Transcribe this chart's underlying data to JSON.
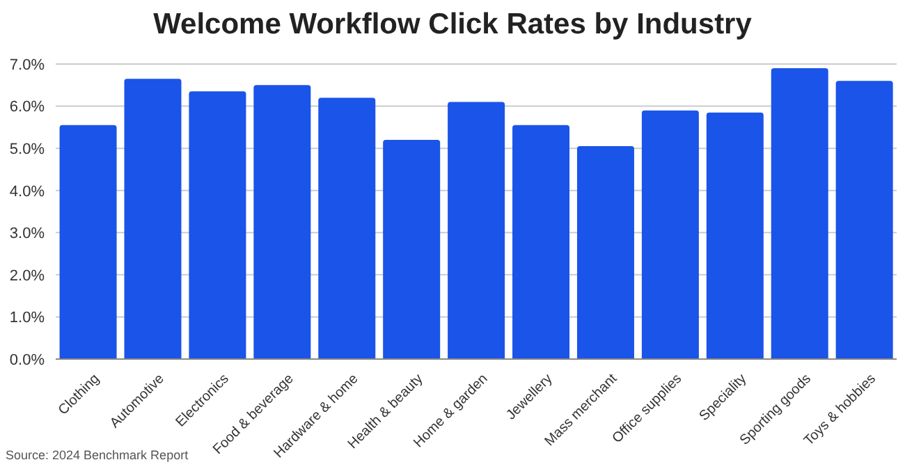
{
  "chart_data": {
    "type": "bar",
    "title": "Welcome Workflow Click Rates by Industry",
    "categories": [
      "Clothing",
      "Automotive",
      "Electronics",
      "Food & beverage",
      "Hardware & home",
      "Health & beauty",
      "Home & garden",
      "Jewellery",
      "Mass merchant",
      "Office supplies",
      "Speciality",
      "Sporting goods",
      "Toys & hobbies"
    ],
    "values": [
      5.55,
      6.65,
      6.35,
      6.5,
      6.2,
      5.2,
      6.1,
      5.55,
      5.05,
      5.9,
      5.85,
      6.9,
      6.6
    ],
    "color": "#1a54e8",
    "ylim": [
      0,
      7
    ],
    "yticks": [
      {
        "value": 0,
        "label": "0.0%"
      },
      {
        "value": 1,
        "label": "1.0%"
      },
      {
        "value": 2,
        "label": "2.0%"
      },
      {
        "value": 3,
        "label": "3.0%"
      },
      {
        "value": 4,
        "label": "4.0%"
      },
      {
        "value": 5,
        "label": "5.0%"
      },
      {
        "value": 6,
        "label": "6.0%"
      },
      {
        "value": 7,
        "label": "7.0%"
      }
    ],
    "grid": "y",
    "annotations": [
      "Source: 2024 Benchmark Report"
    ]
  }
}
